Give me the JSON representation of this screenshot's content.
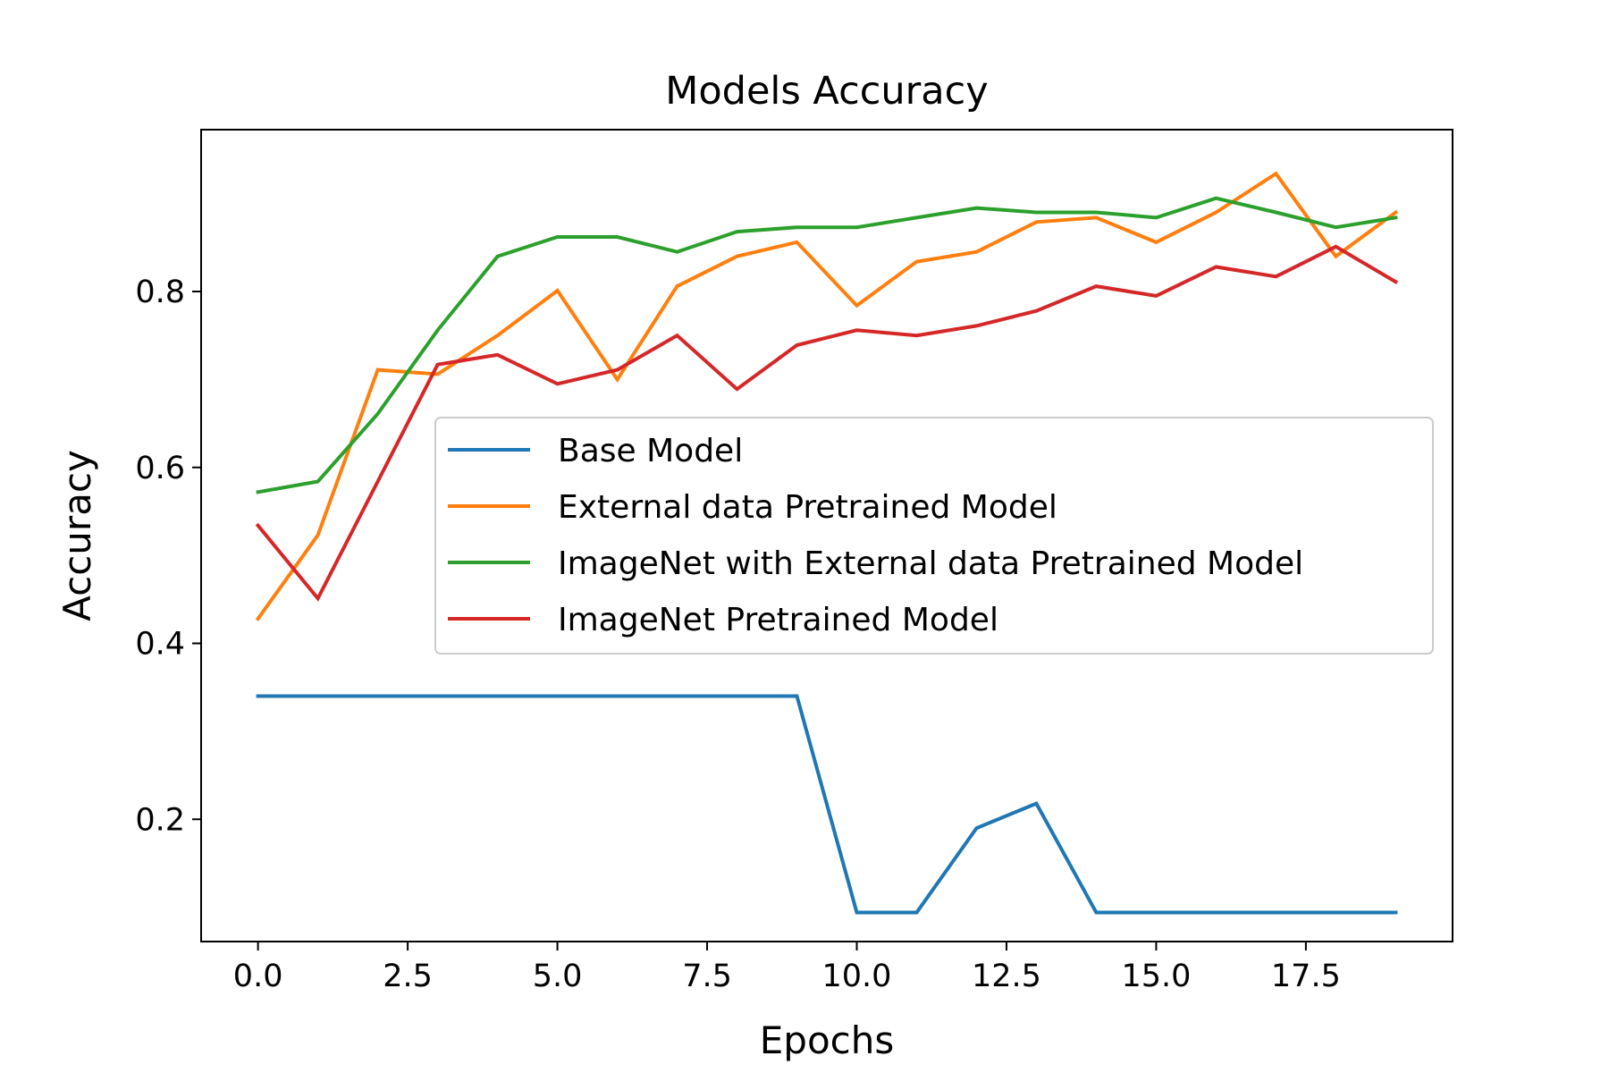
{
  "chart_data": {
    "type": "line",
    "title": "Models Accuracy",
    "xlabel": "Epochs",
    "ylabel": "Accuracy",
    "xlim": [
      -0.95,
      19.95
    ],
    "ylim": [
      0.061,
      0.984
    ],
    "xticks": [
      0.0,
      2.5,
      5.0,
      7.5,
      10.0,
      12.5,
      15.0,
      17.5
    ],
    "xtick_labels": [
      "0.0",
      "2.5",
      "5.0",
      "7.5",
      "10.0",
      "12.5",
      "15.0",
      "17.5"
    ],
    "yticks": [
      0.2,
      0.4,
      0.6,
      0.8
    ],
    "ytick_labels": [
      "0.2",
      "0.4",
      "0.6",
      "0.8"
    ],
    "grid": false,
    "legend_position": "center-right",
    "x": [
      0,
      1,
      2,
      3,
      4,
      5,
      6,
      7,
      8,
      9,
      10,
      11,
      12,
      13,
      14,
      15,
      16,
      17,
      18,
      19
    ],
    "series": [
      {
        "name": "Base Model",
        "color": "#1f77b4",
        "values": [
          0.34,
          0.34,
          0.34,
          0.34,
          0.34,
          0.34,
          0.34,
          0.34,
          0.34,
          0.34,
          0.094,
          0.094,
          0.19,
          0.218,
          0.094,
          0.094,
          0.094,
          0.094,
          0.094,
          0.094
        ]
      },
      {
        "name": "External data Pretrained Model",
        "color": "#ff7f0e",
        "values": [
          0.428,
          0.523,
          0.711,
          0.706,
          0.75,
          0.801,
          0.7,
          0.806,
          0.84,
          0.856,
          0.784,
          0.834,
          0.845,
          0.879,
          0.884,
          0.856,
          0.89,
          0.934,
          0.84,
          0.89
        ]
      },
      {
        "name": "ImageNet with External data Pretrained Model",
        "color": "#2ca02c",
        "values": [
          0.572,
          0.584,
          0.661,
          0.756,
          0.84,
          0.862,
          0.862,
          0.845,
          0.868,
          0.873,
          0.873,
          0.884,
          0.895,
          0.89,
          0.89,
          0.884,
          0.906,
          0.89,
          0.873,
          0.884
        ]
      },
      {
        "name": "ImageNet Pretrained Model",
        "color": "#d62728",
        "values": [
          0.534,
          0.451,
          0.584,
          0.717,
          0.728,
          0.695,
          0.711,
          0.75,
          0.689,
          0.739,
          0.756,
          0.75,
          0.761,
          0.778,
          0.806,
          0.795,
          0.828,
          0.817,
          0.851,
          0.811
        ]
      }
    ]
  }
}
